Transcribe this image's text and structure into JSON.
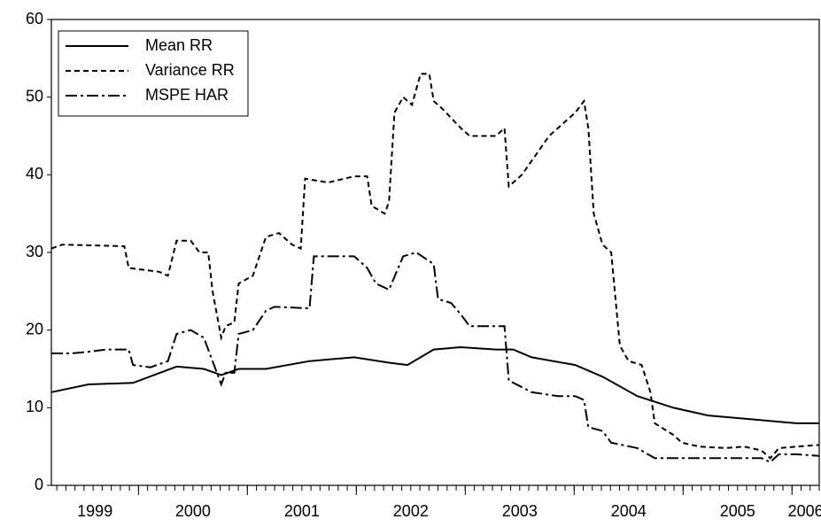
{
  "chart_data": {
    "type": "line",
    "xlim": [
      1999.2,
      2006.25
    ],
    "xticks": [
      1999,
      2000,
      2001,
      2002,
      2003,
      2004,
      2005,
      2006
    ],
    "ylim": [
      0,
      60
    ],
    "yticks": [
      0,
      10,
      20,
      30,
      40,
      50,
      60
    ],
    "legend": "upper left",
    "series": [
      {
        "name": "Mean RR",
        "color": "#000000",
        "dash": "solid",
        "x": [
          1999.2,
          1999.54,
          1999.95,
          2000.35,
          2000.6,
          2000.76,
          2000.92,
          2001.17,
          2001.57,
          2001.98,
          2002.3,
          2002.47,
          2002.71,
          2002.96,
          2003.28,
          2003.44,
          2003.61,
          2004.01,
          2004.26,
          2004.58,
          2004.91,
          2005.23,
          2005.64,
          2006.04,
          2006.25
        ],
        "values": [
          12,
          13,
          13.2,
          15.3,
          15,
          14.2,
          15,
          15,
          16,
          16.5,
          15.8,
          15.5,
          17.5,
          17.8,
          17.5,
          17.5,
          16.5,
          15.5,
          14,
          11.5,
          10,
          9,
          8.5,
          8,
          8
        ]
      },
      {
        "name": "Variance RR",
        "color": "#000000",
        "dash": "short",
        "x": [
          1999.2,
          1999.3,
          1999.87,
          1999.91,
          2000.19,
          2000.27,
          2000.35,
          2000.48,
          2000.56,
          2000.64,
          2000.68,
          2000.76,
          2000.8,
          2000.88,
          2000.92,
          2001.05,
          2001.17,
          2001.29,
          2001.41,
          2001.49,
          2001.53,
          2001.74,
          2001.98,
          2002.1,
          2002.14,
          2002.26,
          2002.3,
          2002.35,
          2002.43,
          2002.51,
          2002.59,
          2002.67,
          2002.71,
          2002.79,
          2002.96,
          2003.04,
          2003.28,
          2003.36,
          2003.4,
          2003.52,
          2003.77,
          2004.01,
          2004.09,
          2004.13,
          2004.18,
          2004.26,
          2004.34,
          2004.42,
          2004.5,
          2004.62,
          2004.7,
          2004.74,
          2004.91,
          2004.99,
          2005.15,
          2005.39,
          2005.56,
          2005.72,
          2005.8,
          2005.88,
          2006.04,
          2006.25
        ],
        "values": [
          30.5,
          31,
          30.8,
          28,
          27.5,
          27,
          31.5,
          31.5,
          30,
          30,
          25,
          19,
          20.5,
          21,
          26,
          27,
          32,
          32.5,
          31,
          30.5,
          39.5,
          39,
          39.8,
          39.8,
          36,
          35,
          36.5,
          48,
          50,
          49,
          53,
          53,
          49.5,
          48.5,
          46,
          45,
          45,
          46,
          38.5,
          40,
          45,
          48,
          49.5,
          46,
          35,
          31,
          30,
          18,
          16,
          15.5,
          12,
          8,
          6.5,
          5.5,
          5,
          4.8,
          5,
          4.5,
          3.5,
          4.8,
          5,
          5.2
        ]
      },
      {
        "name": "MSPE HAR",
        "color": "#000000",
        "dash": "long",
        "x": [
          1999.2,
          1999.38,
          1999.54,
          1999.7,
          1999.91,
          1999.95,
          2000.11,
          2000.27,
          2000.35,
          2000.48,
          2000.6,
          2000.68,
          2000.76,
          2000.8,
          2000.88,
          2000.92,
          2001.05,
          2001.17,
          2001.25,
          2001.57,
          2001.61,
          2001.98,
          2002.1,
          2002.18,
          2002.3,
          2002.43,
          2002.55,
          2002.71,
          2002.75,
          2002.87,
          2002.96,
          2003.04,
          2003.36,
          2003.4,
          2003.61,
          2003.85,
          2004.01,
          2004.09,
          2004.13,
          2004.26,
          2004.34,
          2004.58,
          2004.74,
          2005.23,
          2005.72,
          2005.8,
          2005.88,
          2006.04,
          2006.25
        ],
        "values": [
          17,
          17,
          17.2,
          17.5,
          17.5,
          15.5,
          15.2,
          16,
          19.5,
          20,
          19,
          16,
          13,
          14.5,
          14.5,
          19.5,
          20,
          22.5,
          23,
          22.8,
          29.5,
          29.5,
          28,
          26,
          25.2,
          29.5,
          30,
          28.5,
          24,
          23.5,
          22,
          20.5,
          20.5,
          13.5,
          12,
          11.5,
          11.5,
          11,
          7.5,
          7,
          5.5,
          4.8,
          3.5,
          3.5,
          3.5,
          3,
          4,
          4,
          3.8
        ]
      }
    ]
  }
}
